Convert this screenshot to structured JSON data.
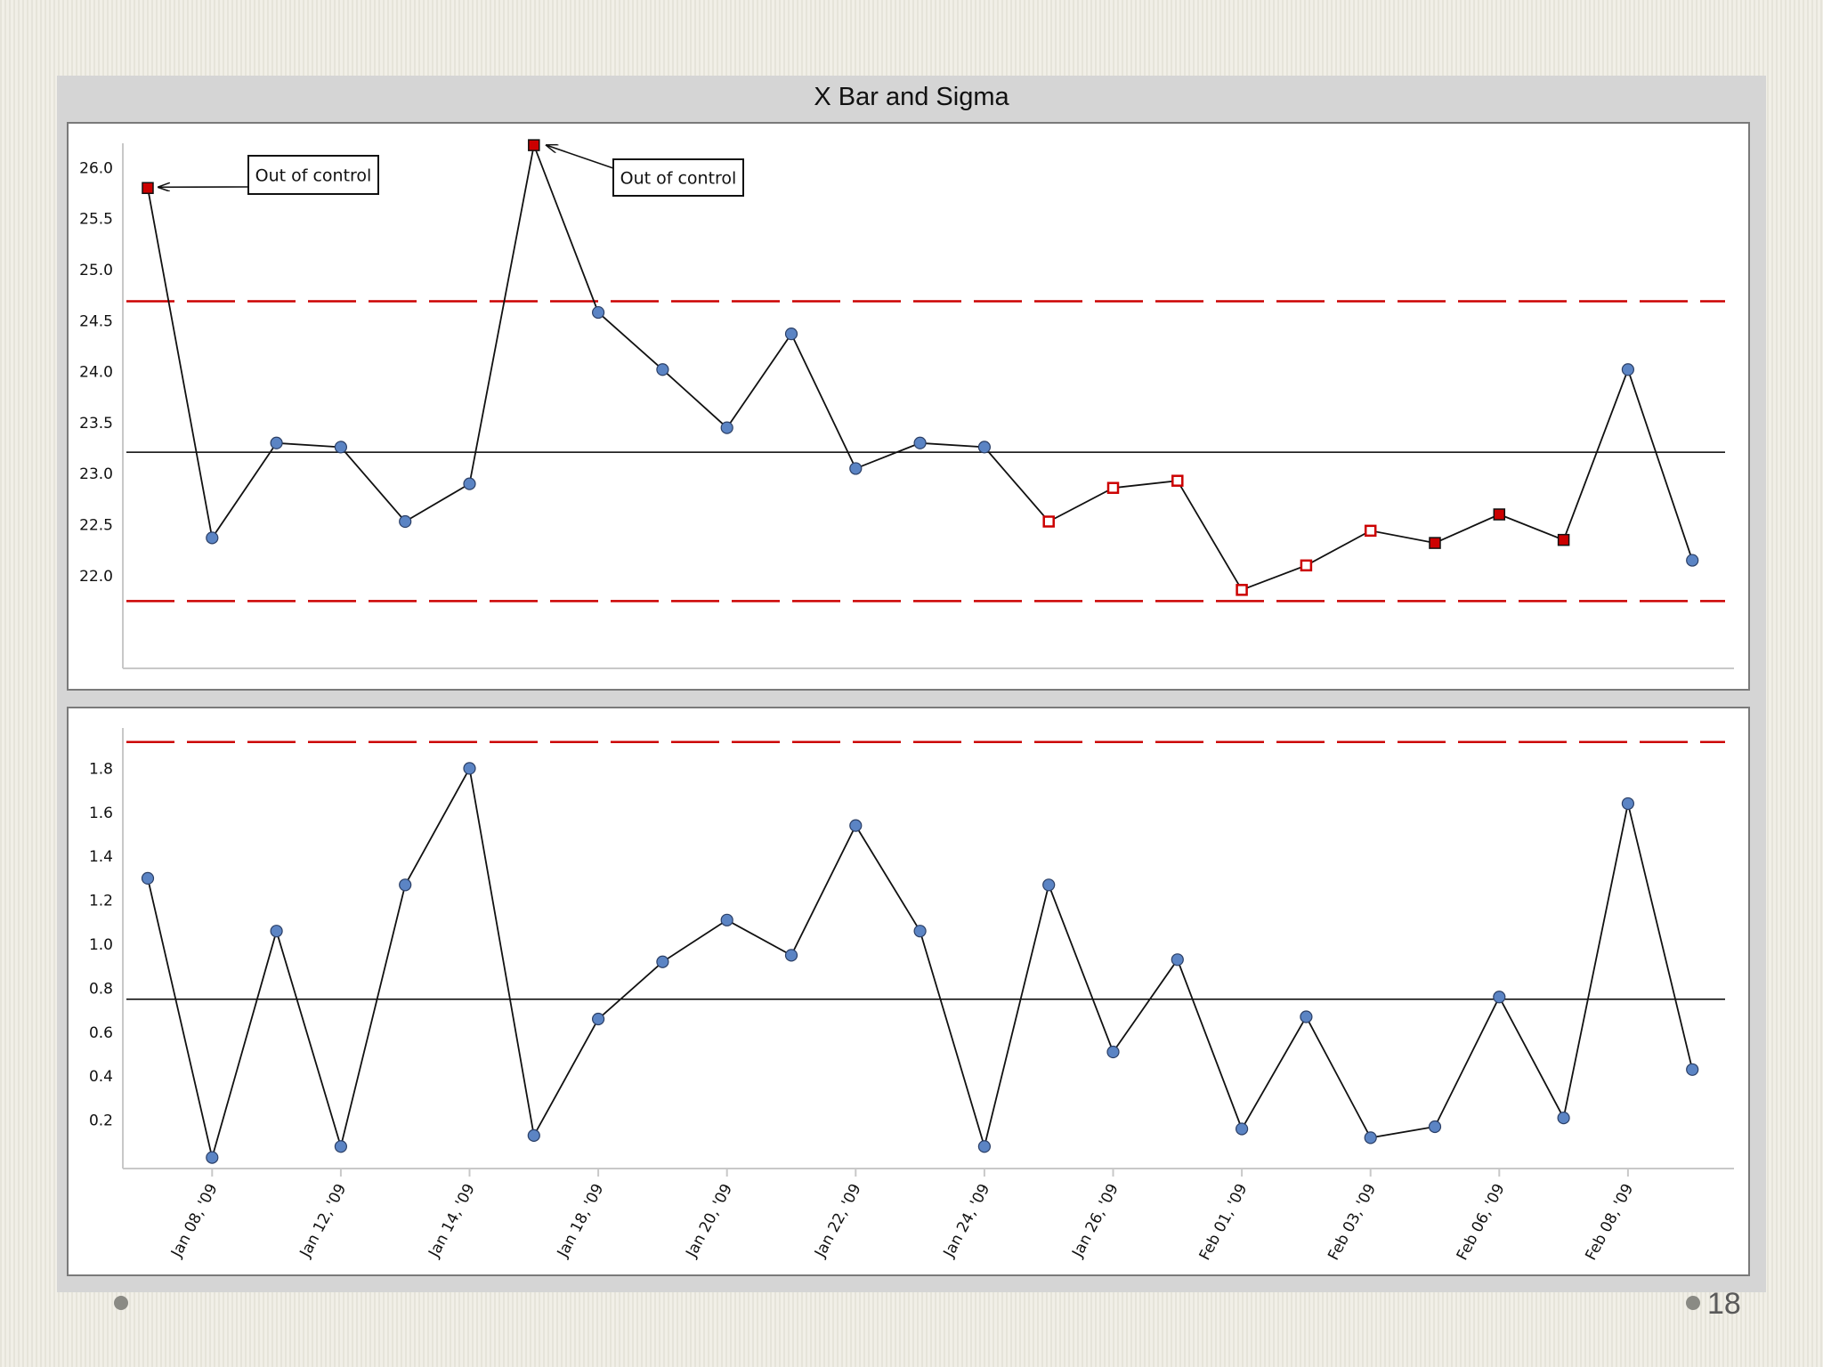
{
  "page_number": "18",
  "chart_data": [
    {
      "type": "line",
      "title": "X Bar and Sigma",
      "xlabel": "",
      "ylabel": "",
      "ylim": [
        21.3,
        26.4
      ],
      "y_ticks": [
        "26.0",
        "25.5",
        "25.0",
        "24.5",
        "24.0",
        "23.5",
        "23.0",
        "22.5",
        "22.0"
      ],
      "center_line": 23.21,
      "upper_limit": 24.69,
      "lower_limit": 21.75,
      "values": [
        25.8,
        22.37,
        23.3,
        23.26,
        22.53,
        22.9,
        26.22,
        24.58,
        24.02,
        23.45,
        24.37,
        23.05,
        23.3,
        23.26,
        22.53,
        22.86,
        22.93,
        21.86,
        22.1,
        22.44,
        22.32,
        22.6,
        22.35,
        24.02,
        22.15
      ],
      "point_status": [
        "out",
        "in",
        "in",
        "in",
        "in",
        "in",
        "out",
        "in",
        "in",
        "in",
        "in",
        "in",
        "in",
        "in",
        "run",
        "run",
        "run",
        "run",
        "run",
        "run",
        "flag",
        "flag",
        "flag",
        "in",
        "in"
      ],
      "annotations": [
        {
          "text": "Out of control",
          "point_index": 0
        },
        {
          "text": "Out of control",
          "point_index": 6
        }
      ],
      "colors": {
        "in_control": "#5b84c4",
        "out_of_control": "#cc0000",
        "limit": "#cc0000",
        "center": "#000000",
        "line": "#111111"
      },
      "grid": false
    },
    {
      "type": "line",
      "xlabel": "",
      "ylabel": "",
      "ylim": [
        0,
        2.0
      ],
      "y_ticks": [
        "1.8",
        "1.6",
        "1.4",
        "1.2",
        "1.0",
        "0.8",
        "0.6",
        "0.4",
        "0.2"
      ],
      "x_tick_labels": [
        "Jan 08, '09",
        "Jan 12, '09",
        "Jan 14, '09",
        "Jan 18, '09",
        "Jan 20, '09",
        "Jan 22, '09",
        "Jan 24, '09",
        "Jan 26, '09",
        "Feb 01, '09",
        "Feb 03, '09",
        "Feb 06, '09",
        "Feb 08, '09"
      ],
      "x_tick_point_indices": [
        1,
        3,
        5,
        7,
        9,
        11,
        13,
        15,
        17,
        19,
        21,
        23
      ],
      "center_line": 0.75,
      "upper_limit": 1.92,
      "values": [
        1.3,
        0.03,
        1.06,
        0.08,
        1.27,
        1.8,
        0.13,
        0.66,
        0.92,
        1.11,
        0.95,
        1.54,
        1.06,
        0.08,
        1.27,
        0.51,
        0.93,
        0.16,
        0.67,
        0.12,
        0.17,
        0.76,
        0.21,
        1.64,
        0.43
      ],
      "colors": {
        "point": "#5b84c4",
        "limit": "#cc0000",
        "center": "#000000",
        "line": "#111111"
      },
      "grid": false
    }
  ]
}
